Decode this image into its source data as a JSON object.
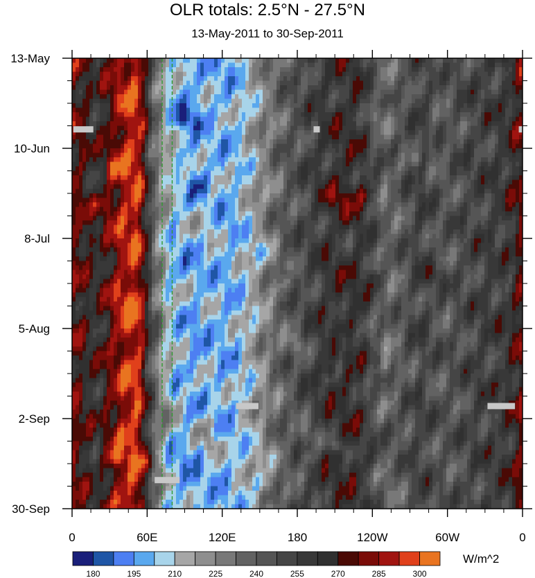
{
  "chart_data": {
    "type": "heatmap",
    "title": "OLR totals: 2.5°N - 27.5°N",
    "subtitle": "13-May-2011 to 30-Sep-2011",
    "x_axis": {
      "tick_labels": [
        "0",
        "60E",
        "120E",
        "180",
        "120W",
        "60W",
        "0"
      ],
      "tick_lon": [
        0,
        60,
        120,
        180,
        240,
        300,
        360
      ],
      "range_deg": [
        0,
        360
      ]
    },
    "y_axis": {
      "tick_labels": [
        "13-May",
        "10-Jun",
        "8-Jul",
        "5-Aug",
        "2-Sep",
        "30-Sep"
      ],
      "tick_day": [
        0,
        28,
        56,
        84,
        112,
        140
      ],
      "range_days": [
        0,
        140
      ],
      "direction": "time increases downward"
    },
    "colorbar": {
      "units": "W/m^2",
      "levels": [
        180,
        187.5,
        195,
        202.5,
        210,
        217.5,
        225,
        232.5,
        240,
        247.5,
        255,
        262.5,
        270,
        277.5,
        285,
        292.5,
        300
      ],
      "labels": [
        "180",
        "195",
        "210",
        "225",
        "240",
        "255",
        "270",
        "285",
        "300"
      ],
      "colors": [
        "#1a1f7a",
        "#1f56a6",
        "#4d7ff2",
        "#5aa8ee",
        "#a8d4ea",
        "#a6a6a6",
        "#8e8e8e",
        "#787878",
        "#626262",
        "#555555",
        "#454545",
        "#383838",
        "#303030",
        "#4a0a05",
        "#7a0c08",
        "#a01410",
        "#e0401b",
        "#e97420"
      ]
    },
    "longitude_profile": [
      {
        "lon": 0,
        "olr": 278
      },
      {
        "lon": 10,
        "olr": 270
      },
      {
        "lon": 20,
        "olr": 262
      },
      {
        "lon": 30,
        "olr": 276
      },
      {
        "lon": 40,
        "olr": 290
      },
      {
        "lon": 50,
        "olr": 296
      },
      {
        "lon": 55,
        "olr": 288
      },
      {
        "lon": 60,
        "olr": 262
      },
      {
        "lon": 65,
        "olr": 238
      },
      {
        "lon": 70,
        "olr": 224
      },
      {
        "lon": 75,
        "olr": 212
      },
      {
        "lon": 80,
        "olr": 205
      },
      {
        "lon": 90,
        "olr": 200
      },
      {
        "lon": 100,
        "olr": 198
      },
      {
        "lon": 110,
        "olr": 203
      },
      {
        "lon": 120,
        "olr": 200
      },
      {
        "lon": 130,
        "olr": 203
      },
      {
        "lon": 140,
        "olr": 210
      },
      {
        "lon": 150,
        "olr": 222
      },
      {
        "lon": 160,
        "olr": 232
      },
      {
        "lon": 170,
        "olr": 240
      },
      {
        "lon": 180,
        "olr": 246
      },
      {
        "lon": 190,
        "olr": 252
      },
      {
        "lon": 200,
        "olr": 258
      },
      {
        "lon": 210,
        "olr": 262
      },
      {
        "lon": 220,
        "olr": 264
      },
      {
        "lon": 230,
        "olr": 262
      },
      {
        "lon": 240,
        "olr": 246
      },
      {
        "lon": 250,
        "olr": 236
      },
      {
        "lon": 260,
        "olr": 240
      },
      {
        "lon": 270,
        "olr": 248
      },
      {
        "lon": 280,
        "olr": 254
      },
      {
        "lon": 290,
        "olr": 246
      },
      {
        "lon": 300,
        "olr": 244
      },
      {
        "lon": 310,
        "olr": 248
      },
      {
        "lon": 320,
        "olr": 252
      },
      {
        "lon": 330,
        "olr": 254
      },
      {
        "lon": 340,
        "olr": 256
      },
      {
        "lon": 350,
        "olr": 262
      },
      {
        "lon": 360,
        "olr": 278
      }
    ],
    "reference_lines": {
      "style": "green dashed vertical",
      "lon": [
        72,
        80
      ]
    },
    "missing_data_segments": [
      {
        "day": 22,
        "lon_start": 1,
        "lon_end": 17
      },
      {
        "day": 22,
        "lon_start": 193,
        "lon_end": 198
      },
      {
        "day": 22,
        "lon_start": 357,
        "lon_end": 360
      },
      {
        "day": 108,
        "lon_start": 131,
        "lon_end": 149
      },
      {
        "day": 108,
        "lon_start": 332,
        "lon_end": 354
      },
      {
        "day": 131,
        "lon_start": 66,
        "lon_end": 86
      }
    ],
    "grid": false,
    "legend_position": "bottom"
  }
}
